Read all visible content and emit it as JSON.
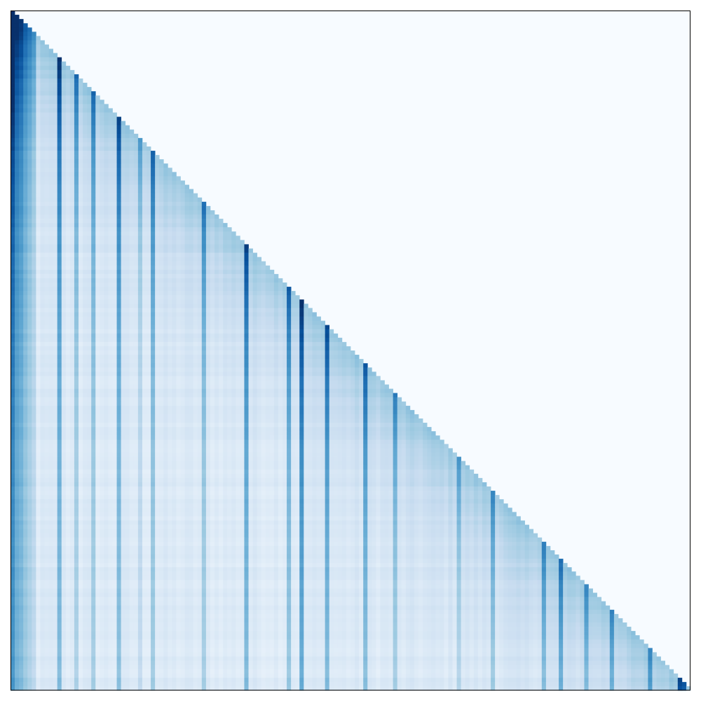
{
  "chart_data": {
    "type": "heatmap",
    "title": "",
    "xlabel": "",
    "ylabel": "",
    "colormap": "Blues",
    "mask": "upper-triangle",
    "size": 160,
    "value_range": [
      0,
      1
    ],
    "axes_ticks": false,
    "grid": false,
    "legend": "none",
    "colors": {
      "frame": "#000000",
      "masked": "#f7fbff",
      "low": "#deebf7",
      "high": "#08306b"
    },
    "column_strength": [
      {
        "col": 0,
        "v": 0.92
      },
      {
        "col": 1,
        "v": 0.7
      },
      {
        "col": 2,
        "v": 0.6
      },
      {
        "col": 3,
        "v": 0.42
      },
      {
        "col": 4,
        "v": 0.35
      },
      {
        "col": 5,
        "v": 0.25
      },
      {
        "col": 11,
        "v": 0.62
      },
      {
        "col": 15,
        "v": 0.4
      },
      {
        "col": 19,
        "v": 0.38
      },
      {
        "col": 25,
        "v": 0.55
      },
      {
        "col": 30,
        "v": 0.2
      },
      {
        "col": 33,
        "v": 0.45
      },
      {
        "col": 45,
        "v": 0.35
      },
      {
        "col": 55,
        "v": 0.55
      },
      {
        "col": 65,
        "v": 0.45
      },
      {
        "col": 68,
        "v": 0.6
      },
      {
        "col": 74,
        "v": 0.55
      },
      {
        "col": 83,
        "v": 0.45
      },
      {
        "col": 90,
        "v": 0.3
      },
      {
        "col": 105,
        "v": 0.25
      },
      {
        "col": 113,
        "v": 0.3
      },
      {
        "col": 125,
        "v": 0.32
      },
      {
        "col": 129,
        "v": 0.38
      },
      {
        "col": 135,
        "v": 0.3
      },
      {
        "col": 141,
        "v": 0.3
      },
      {
        "col": 150,
        "v": 0.28
      },
      {
        "col": 157,
        "v": 0.55
      },
      {
        "col": 158,
        "v": 0.45
      }
    ]
  }
}
